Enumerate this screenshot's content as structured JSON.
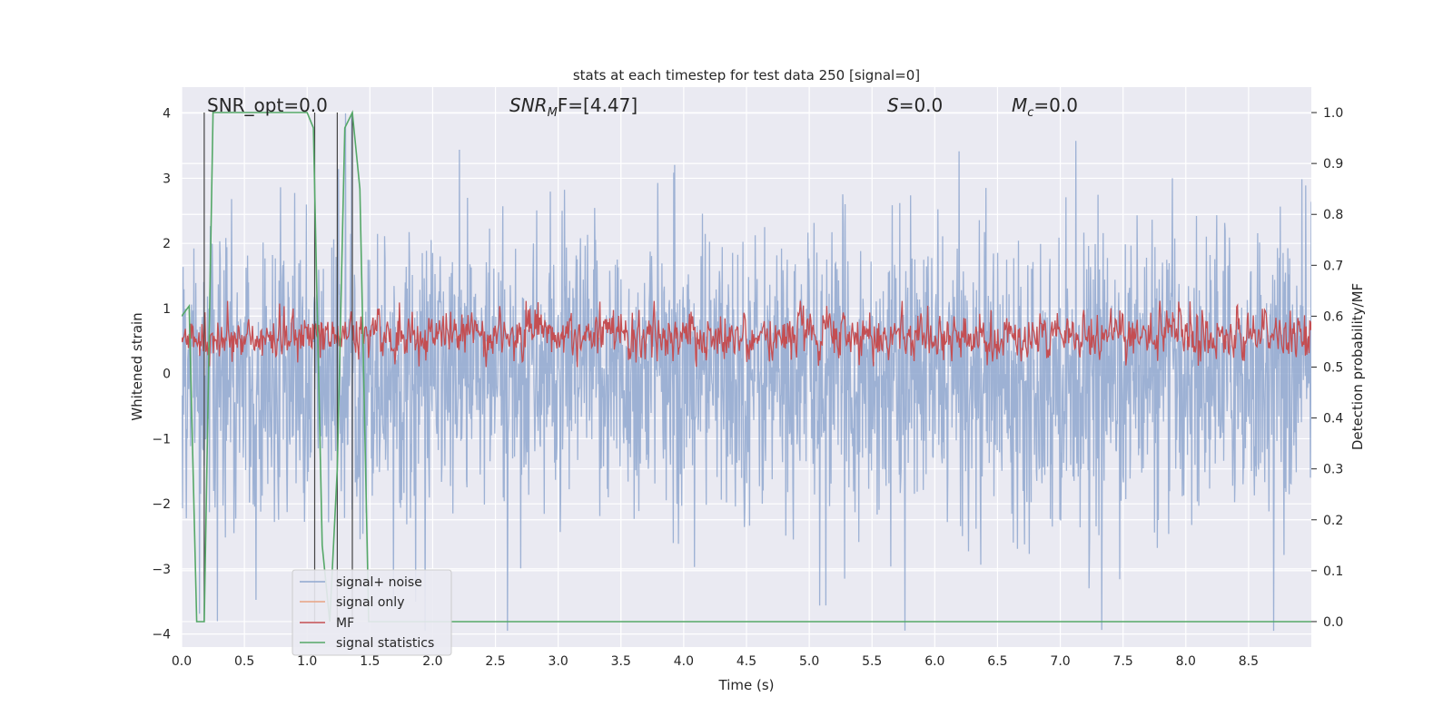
{
  "chart_data": {
    "type": "line",
    "title": "stats at each timestep for test data 250 [signal=0]",
    "xlabel": "Time (s)",
    "ylabel": "Whitened strain",
    "y2label": "Detection probability/MF",
    "xlim": [
      0.0,
      9.0
    ],
    "ylim": [
      -4.2,
      4.4
    ],
    "y2lim": [
      -0.05,
      1.05
    ],
    "x_ticks": [
      "0.0",
      "0.5",
      "1.0",
      "1.5",
      "2.0",
      "2.5",
      "3.0",
      "3.5",
      "4.0",
      "4.5",
      "5.0",
      "5.5",
      "6.0",
      "6.5",
      "7.0",
      "7.5",
      "8.0",
      "8.5"
    ],
    "y_ticks": [
      "4",
      "3",
      "2",
      "1",
      "0",
      "−1",
      "−2",
      "−3",
      "−4"
    ],
    "y2_ticks": [
      "1.0",
      "0.9",
      "0.8",
      "0.7",
      "0.6",
      "0.5",
      "0.4",
      "0.3",
      "0.2",
      "0.1",
      "0.0"
    ],
    "grid": true,
    "legend_position": "lower-left",
    "annotations": {
      "snr_opt": "SNR_opt=0.0",
      "snr_mf_main": "SNR",
      "snr_mf_sub": "M",
      "snr_mf_rest": "F=[4.47]",
      "s_main": "S",
      "s_rest": "=0.0",
      "mc_main": "M",
      "mc_sub": "c",
      "mc_rest": "=0.0"
    },
    "series": [
      {
        "name": "signal+ noise",
        "color": "#8fa7cf",
        "description": "whitened strain noise, roughly symmetric about 0 with amplitude mostly within ±2.5 and spikes up to about ±4"
      },
      {
        "name": "signal only",
        "color": "#e8a282",
        "values": [
          0,
          0
        ]
      },
      {
        "name": "MF",
        "color": "#c44e52",
        "description": "matched filter output on right axis, fluctuating between about 0.5 and 0.62"
      },
      {
        "name": "signal statistics",
        "color": "#55a868",
        "points": [
          [
            0.0,
            0.6
          ],
          [
            0.06,
            0.62
          ],
          [
            0.12,
            0.0
          ],
          [
            0.18,
            0.0
          ],
          [
            0.25,
            1.0
          ],
          [
            0.5,
            1.0
          ],
          [
            0.75,
            1.0
          ],
          [
            1.0,
            1.0
          ],
          [
            1.05,
            0.97
          ],
          [
            1.12,
            0.15
          ],
          [
            1.18,
            0.0
          ],
          [
            1.24,
            0.3
          ],
          [
            1.3,
            0.97
          ],
          [
            1.36,
            1.0
          ],
          [
            1.42,
            0.85
          ],
          [
            1.49,
            0.0
          ],
          [
            1.6,
            0.0
          ],
          [
            9.0,
            0.0
          ]
        ]
      }
    ],
    "vertical_markers_x": [
      0.18,
      1.06,
      1.24,
      1.36
    ]
  }
}
